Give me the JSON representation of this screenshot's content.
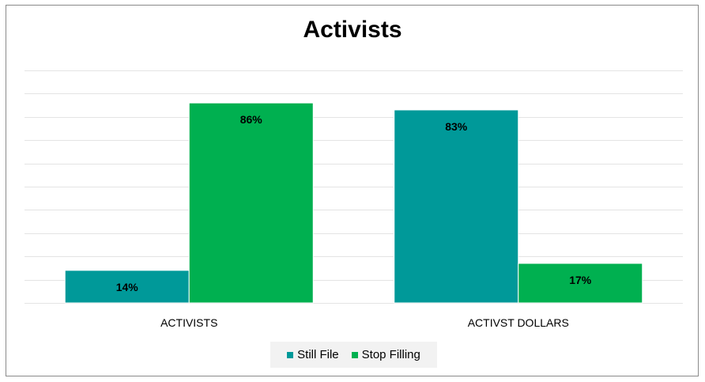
{
  "chart_data": {
    "type": "bar",
    "title": "Activists",
    "categories": [
      "ACTIVISTS",
      "ACTIVST DOLLARS"
    ],
    "series": [
      {
        "name": "Still File",
        "values": [
          14,
          83
        ],
        "labels": [
          "14%",
          "83%"
        ],
        "color": "#009999"
      },
      {
        "name": "Stop Filling",
        "values": [
          86,
          17
        ],
        "labels": [
          "86%",
          "17%"
        ],
        "color": "#00b050"
      }
    ],
    "value_unit": "%",
    "ylim": [
      0,
      100
    ],
    "grid": true,
    "y_axis_labels_shown": false,
    "legend_position": "bottom"
  }
}
